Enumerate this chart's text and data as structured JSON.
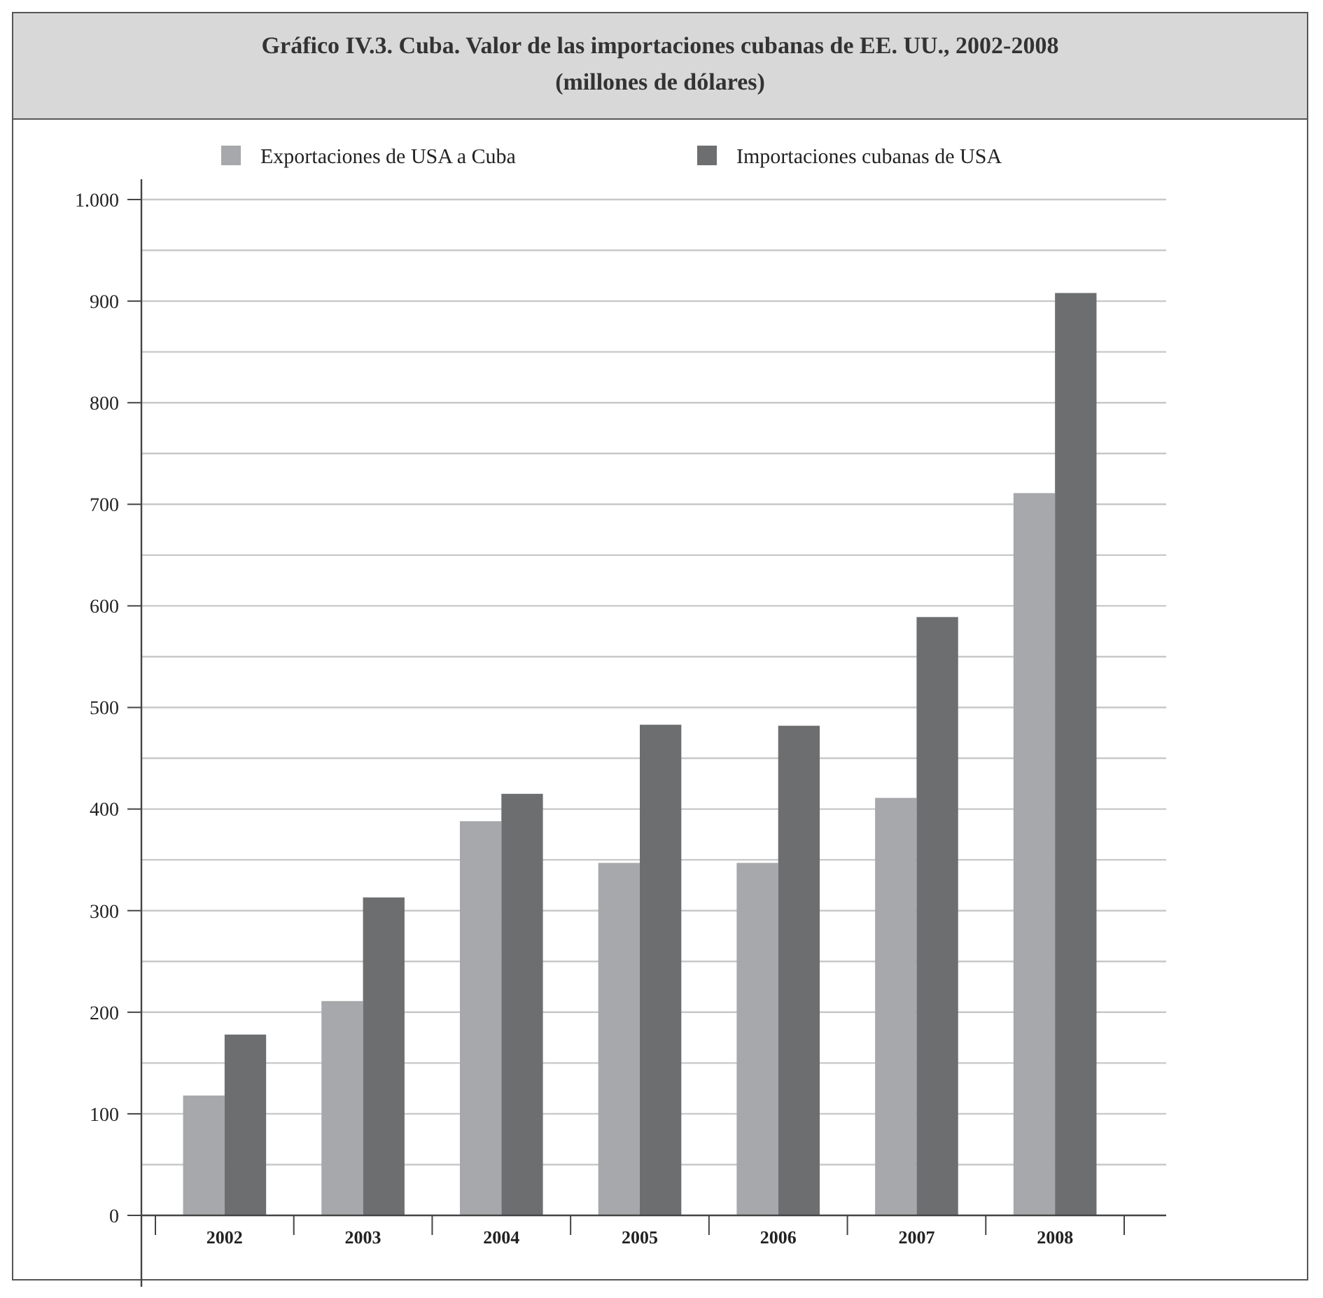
{
  "chart_data": {
    "type": "bar",
    "title": "Gráfico IV.3. Cuba. Valor de las importaciones cubanas de EE. UU., 2002-2008",
    "subtitle": "(millones de dólares)",
    "categories": [
      "2002",
      "2003",
      "2004",
      "2005",
      "2006",
      "2007",
      "2008"
    ],
    "series": [
      {
        "name": "Exportaciones de USA a Cuba",
        "color": "#a7a8ab",
        "values": [
          118,
          211,
          388,
          347,
          347,
          411,
          711
        ]
      },
      {
        "name": "Importaciones cubanas de USA",
        "color": "#6d6e70",
        "values": [
          178,
          313,
          415,
          483,
          482,
          589,
          908
        ]
      }
    ],
    "ylim": [
      0,
      1020
    ],
    "yticks": [
      0,
      {
        "value": 50,
        "label": null
      },
      100,
      {
        "value": 150,
        "label": null
      },
      200,
      {
        "value": 250,
        "label": null
      },
      300,
      {
        "value": 350,
        "label": null
      },
      400,
      {
        "value": 450,
        "label": null
      },
      500,
      {
        "value": 550,
        "label": null
      },
      600,
      {
        "value": 650,
        "label": null
      },
      700,
      {
        "value": 750,
        "label": null
      },
      800,
      {
        "value": 850,
        "label": null
      },
      900,
      {
        "value": 950,
        "label": null
      },
      {
        "value": 1000,
        "label": "1.000"
      }
    ],
    "grid": "y",
    "legend": "top"
  }
}
